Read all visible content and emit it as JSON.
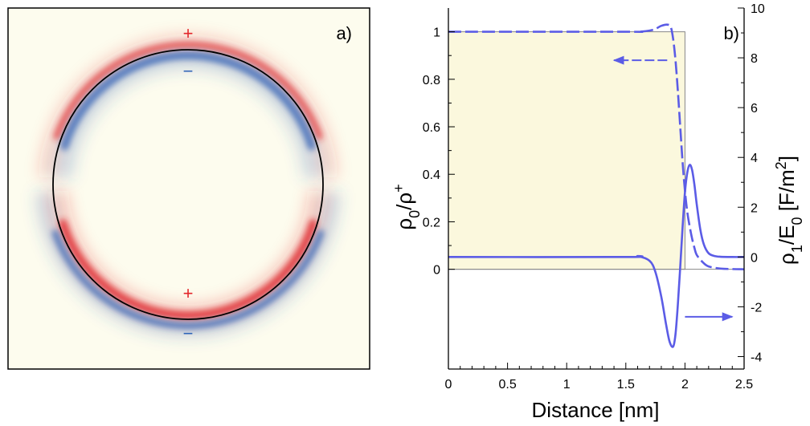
{
  "panel_a": {
    "label": "a)",
    "background_color": "#fdfcee",
    "positive_color": "#e3262b",
    "negative_color": "#2e63b7",
    "signs": [
      {
        "text": "+",
        "polarity": "positive"
      },
      {
        "text": "−",
        "polarity": "negative"
      },
      {
        "text": "+",
        "polarity": "positive"
      },
      {
        "text": "−",
        "polarity": "negative"
      }
    ]
  },
  "chart_data": {
    "type": "line",
    "label": "b)",
    "xlabel": "Distance [nm]",
    "ylabel_left": {
      "base": "ρ",
      "sub": "0",
      "mid": "/ρ",
      "sup": "+"
    },
    "ylabel_right": {
      "base": "ρ",
      "sub1": "1",
      "mid": "/E",
      "sub2": "0",
      "unit_open": " [F/m",
      "sup": "2",
      "unit_close": "]"
    },
    "xlim": [
      0,
      2.5
    ],
    "ylim_left": [
      -0.42,
      1.1
    ],
    "ylim_right": [
      -4.5,
      10
    ],
    "x_ticks": [
      0,
      0.5,
      1,
      1.5,
      2,
      2.5
    ],
    "x_tick_labels": [
      "0",
      "0.5",
      "1",
      "1.5",
      "2",
      "2.5"
    ],
    "y_left_ticks": [
      0,
      0.2,
      0.4,
      0.6,
      0.8,
      1
    ],
    "y_left_tick_labels": [
      "0",
      "0.2",
      "0.4",
      "0.6",
      "0.8",
      "1"
    ],
    "y_right_ticks": [
      -4,
      -2,
      0,
      2,
      4,
      6,
      8,
      10
    ],
    "y_right_tick_labels": [
      "-4",
      "-2",
      "0",
      "2",
      "4",
      "6",
      "8",
      "10"
    ],
    "line_color": "#5b5ce6",
    "fill_color": "#fbf8dd",
    "reference_box": {
      "x": [
        0,
        2
      ],
      "y": [
        0,
        1
      ]
    },
    "series": [
      {
        "axis": "left",
        "style": "dashed",
        "x": [
          0,
          1.5,
          1.6,
          1.7,
          1.75,
          1.8,
          1.85,
          1.88,
          1.9,
          1.92,
          1.94,
          1.96,
          1.98,
          2.0,
          2.02,
          2.04,
          2.06,
          2.08,
          2.1,
          2.15,
          2.2,
          2.3,
          2.4,
          2.5
        ],
        "y": [
          1.0,
          1.0,
          1.0,
          1.005,
          1.012,
          1.025,
          1.03,
          1.02,
          0.97,
          0.88,
          0.75,
          0.6,
          0.45,
          0.33,
          0.24,
          0.18,
          0.13,
          0.09,
          0.06,
          0.03,
          0.012,
          0.003,
          0.001,
          0.0
        ]
      },
      {
        "axis": "right",
        "style": "solid",
        "x": [
          0,
          1.5,
          1.6,
          1.7,
          1.75,
          1.8,
          1.84,
          1.87,
          1.9,
          1.92,
          1.94,
          1.96,
          1.98,
          2.0,
          2.02,
          2.04,
          2.06,
          2.08,
          2.1,
          2.13,
          2.16,
          2.2,
          2.25,
          2.3,
          2.4,
          2.5
        ],
        "y": [
          0,
          0,
          0.03,
          -0.15,
          -0.6,
          -1.6,
          -2.7,
          -3.4,
          -3.6,
          -3.1,
          -1.9,
          -0.4,
          1.2,
          2.6,
          3.4,
          3.7,
          3.5,
          2.9,
          2.1,
          1.1,
          0.5,
          0.15,
          0.04,
          0.01,
          0,
          0
        ]
      }
    ],
    "annotations": [
      {
        "type": "arrow",
        "direction": "left",
        "axis": "left"
      },
      {
        "type": "arrow",
        "direction": "right",
        "axis": "right"
      }
    ]
  }
}
